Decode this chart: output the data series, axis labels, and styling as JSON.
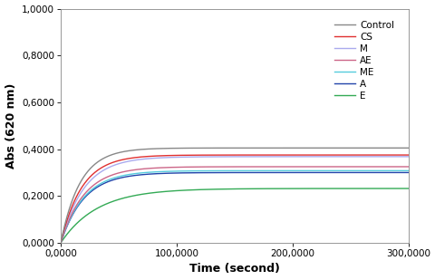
{
  "series": [
    {
      "label": "Control",
      "color": "#888888",
      "asymptote": 0.405,
      "rate": 6e-05,
      "zorder": 7,
      "lw": 1.0
    },
    {
      "label": "CS",
      "color": "#e03030",
      "asymptote": 0.375,
      "rate": 5.5e-05,
      "zorder": 6,
      "lw": 1.0
    },
    {
      "label": "M",
      "color": "#aaaaee",
      "asymptote": 0.368,
      "rate": 5e-05,
      "zorder": 5,
      "lw": 1.0
    },
    {
      "label": "AE",
      "color": "#cc6688",
      "asymptote": 0.325,
      "rate": 5e-05,
      "zorder": 4,
      "lw": 1.0
    },
    {
      "label": "ME",
      "color": "#55ccdd",
      "asymptote": 0.308,
      "rate": 5e-05,
      "zorder": 3,
      "lw": 1.0
    },
    {
      "label": "A",
      "color": "#2244aa",
      "asymptote": 0.3,
      "rate": 5e-05,
      "zorder": 2,
      "lw": 1.0
    },
    {
      "label": "E",
      "color": "#33aa55",
      "asymptote": 0.232,
      "rate": 3.2e-05,
      "zorder": 1,
      "lw": 1.0
    }
  ],
  "xmin": 0,
  "xmax": 300000,
  "ymin": 0.0,
  "ymax": 1.0,
  "xlabel": "Time (second)",
  "ylabel": "Abs (620 nm)",
  "xticks": [
    0,
    100000,
    200000,
    300000
  ],
  "xtick_labels": [
    "0,0000",
    "100,0000",
    "200,0000",
    "300,0000"
  ],
  "yticks": [
    0.0,
    0.2,
    0.4,
    0.6,
    0.8,
    1.0
  ],
  "ytick_labels": [
    "0,0000",
    "0,2000",
    "0,4000",
    "0,6000",
    "0,8000",
    "1,0000"
  ],
  "background_color": "#ffffff",
  "linewidth": 1.0,
  "figure_width": 4.81,
  "figure_height": 3.09,
  "dpi": 100
}
